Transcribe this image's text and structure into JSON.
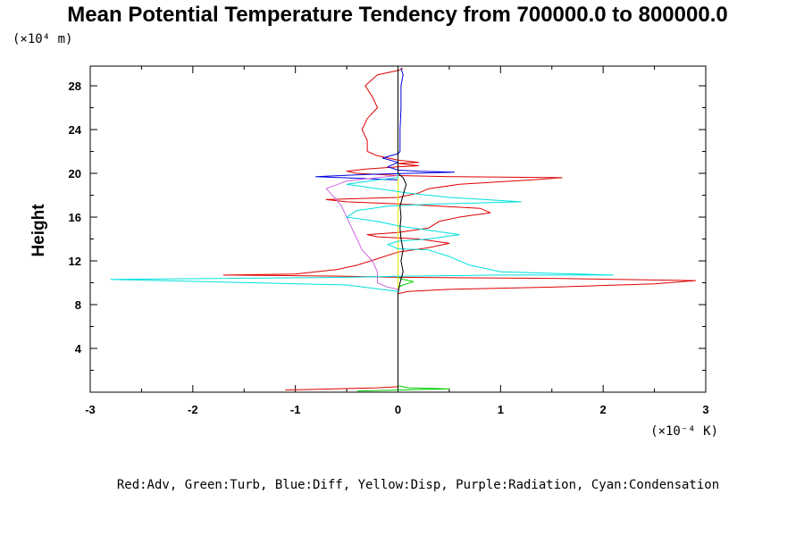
{
  "chart_data": {
    "type": "line",
    "title": "Mean Potential Temperature Tendency from 700000.0 to 800000.0",
    "ylabel": "Height",
    "y_unit": "(×10⁴ m)",
    "x_unit": "(×10⁻⁴ K)",
    "legend_text": "Red:Adv, Green:Turb, Blue:Diff, Yellow:Disp, Purple:Radiation, Cyan:Condensation",
    "xlim": [
      -3,
      3
    ],
    "ylim": [
      0,
      29.8
    ],
    "x_ticks": [
      -3,
      -2,
      -1,
      0,
      1,
      2,
      3
    ],
    "x_tick_labels": [
      "-3",
      "-2",
      "-1",
      "0",
      "1",
      "2",
      "3"
    ],
    "y_ticks": [
      4,
      8,
      12,
      16,
      20,
      24,
      28
    ],
    "y_tick_labels": [
      "4",
      "8",
      "12",
      "16",
      "20",
      "24",
      "28"
    ],
    "grid": false,
    "series": [
      {
        "name": "Adv",
        "color": "#e00000",
        "points": [
          [
            -1.1,
            0.2
          ],
          [
            -0.6,
            0.3
          ],
          [
            -0.2,
            0.4
          ],
          [
            0,
            0.5
          ],
          [
            0,
            0.6
          ],
          [
            0,
            1
          ],
          [
            0,
            2
          ],
          [
            0,
            4
          ],
          [
            0,
            6
          ],
          [
            0,
            8
          ],
          [
            0,
            9
          ],
          [
            0.1,
            9.2
          ],
          [
            0.5,
            9.4
          ],
          [
            1.5,
            9.6
          ],
          [
            2.5,
            9.9
          ],
          [
            2.9,
            10.2
          ],
          [
            1.5,
            10.4
          ],
          [
            0,
            10.5
          ],
          [
            -0.5,
            10.6
          ],
          [
            -1.7,
            10.7
          ],
          [
            -1,
            10.8
          ],
          [
            -0.6,
            11.2
          ],
          [
            -0.4,
            11.6
          ],
          [
            -0.2,
            12.2
          ],
          [
            0,
            12.8
          ],
          [
            0.3,
            13.2
          ],
          [
            0.5,
            13.6
          ],
          [
            0.2,
            14
          ],
          [
            -0.2,
            14.2
          ],
          [
            -0.3,
            14.4
          ],
          [
            0,
            14.6
          ],
          [
            0.3,
            15
          ],
          [
            0.4,
            15.6
          ],
          [
            0.6,
            16
          ],
          [
            0.9,
            16.4
          ],
          [
            0.8,
            16.8
          ],
          [
            0.4,
            17
          ],
          [
            0,
            17.2
          ],
          [
            -0.5,
            17.4
          ],
          [
            -0.7,
            17.6
          ],
          [
            0,
            17.8
          ],
          [
            0.2,
            18.2
          ],
          [
            0.3,
            18.6
          ],
          [
            0.6,
            19
          ],
          [
            1.3,
            19.4
          ],
          [
            1.6,
            19.6
          ],
          [
            0.5,
            19.7
          ],
          [
            0,
            19.8
          ],
          [
            -0.4,
            20
          ],
          [
            -0.5,
            20.2
          ],
          [
            -0.3,
            20.4
          ],
          [
            0,
            20.6
          ],
          [
            0.2,
            20.7
          ],
          [
            0,
            20.9
          ],
          [
            0.2,
            21
          ],
          [
            0,
            21.2
          ],
          [
            -0.2,
            21.6
          ],
          [
            -0.3,
            22
          ],
          [
            -0.3,
            23
          ],
          [
            -0.35,
            24
          ],
          [
            -0.3,
            25
          ],
          [
            -0.2,
            26
          ],
          [
            -0.25,
            27
          ],
          [
            -0.32,
            28
          ],
          [
            -0.2,
            29
          ],
          [
            0,
            29.4
          ],
          [
            0.05,
            29.6
          ]
        ]
      },
      {
        "name": "Turb",
        "color": "#00d000",
        "points": [
          [
            -0.4,
            0.1
          ],
          [
            0,
            0.2
          ],
          [
            0.5,
            0.3
          ],
          [
            0.1,
            0.4
          ],
          [
            0,
            0.6
          ],
          [
            0,
            1
          ],
          [
            0,
            2
          ],
          [
            0,
            4
          ],
          [
            0,
            6
          ],
          [
            0,
            8
          ],
          [
            0,
            9.6
          ],
          [
            0.05,
            9.8
          ],
          [
            0.15,
            10.1
          ],
          [
            0.05,
            10.3
          ],
          [
            0,
            10.5
          ],
          [
            0,
            11
          ],
          [
            0,
            14
          ],
          [
            0,
            18
          ],
          [
            0,
            22
          ],
          [
            0,
            26
          ],
          [
            0,
            29.6
          ]
        ]
      },
      {
        "name": "Diff",
        "color": "#0000e0",
        "points": [
          [
            0,
            0.3
          ],
          [
            0,
            5
          ],
          [
            0,
            10
          ],
          [
            0,
            14
          ],
          [
            0,
            18
          ],
          [
            0,
            19.4
          ],
          [
            -0.8,
            19.7
          ],
          [
            -0.3,
            19.9
          ],
          [
            0.55,
            20.1
          ],
          [
            0.2,
            20.2
          ],
          [
            0,
            20.3
          ],
          [
            -0.1,
            20.6
          ],
          [
            0,
            21
          ],
          [
            -0.15,
            21.4
          ],
          [
            0,
            21.8
          ],
          [
            0.02,
            22
          ],
          [
            0.02,
            24
          ],
          [
            0.03,
            26
          ],
          [
            0.03,
            28
          ],
          [
            0.05,
            29
          ],
          [
            0.03,
            29.6
          ]
        ]
      },
      {
        "name": "Disp",
        "color": "#e8e800",
        "points": [
          [
            0,
            0.3
          ],
          [
            0,
            5
          ],
          [
            0,
            10
          ],
          [
            0,
            12
          ],
          [
            0,
            14
          ],
          [
            0,
            16
          ],
          [
            0,
            18
          ],
          [
            0,
            20
          ],
          [
            0,
            24
          ],
          [
            0,
            28
          ],
          [
            0,
            29.6
          ]
        ]
      },
      {
        "name": "Radiation",
        "color": "#cc66dd",
        "points": [
          [
            0,
            0.3
          ],
          [
            0,
            5
          ],
          [
            0,
            9.4
          ],
          [
            -0.1,
            9.6
          ],
          [
            -0.2,
            10
          ],
          [
            -0.2,
            11
          ],
          [
            -0.25,
            12
          ],
          [
            -0.35,
            13
          ],
          [
            -0.4,
            14
          ],
          [
            -0.45,
            15
          ],
          [
            -0.5,
            16
          ],
          [
            -0.55,
            17
          ],
          [
            -0.6,
            17.6
          ],
          [
            -0.7,
            18.6
          ],
          [
            -0.5,
            19.3
          ],
          [
            -0.2,
            19.6
          ],
          [
            0,
            19.8
          ],
          [
            0,
            24
          ],
          [
            0,
            29.6
          ]
        ]
      },
      {
        "name": "Condensation",
        "color": "#00e0e0",
        "points": [
          [
            0,
            0.3
          ],
          [
            0,
            5
          ],
          [
            0,
            9.2
          ],
          [
            -0.5,
            9.8
          ],
          [
            -2.8,
            10.3
          ],
          [
            -0.5,
            10.5
          ],
          [
            0,
            10.6
          ],
          [
            1,
            10.7
          ],
          [
            2.1,
            10.7
          ],
          [
            1,
            11
          ],
          [
            0.7,
            11.6
          ],
          [
            0.5,
            12.4
          ],
          [
            0.3,
            13
          ],
          [
            0,
            13.1
          ],
          [
            -0.1,
            13.5
          ],
          [
            0,
            13.8
          ],
          [
            0.3,
            14
          ],
          [
            0.6,
            14.4
          ],
          [
            0.3,
            14.8
          ],
          [
            0,
            15.2
          ],
          [
            -0.2,
            15.6
          ],
          [
            -0.5,
            16
          ],
          [
            -0.4,
            16.6
          ],
          [
            -0.1,
            17
          ],
          [
            0.4,
            17.2
          ],
          [
            1.2,
            17.4
          ],
          [
            0.5,
            17.8
          ],
          [
            0.1,
            18.2
          ],
          [
            -0.5,
            19
          ],
          [
            -0.2,
            19.4
          ],
          [
            0,
            19.6
          ],
          [
            0,
            22
          ],
          [
            0,
            26
          ],
          [
            0,
            29.6
          ]
        ]
      },
      {
        "name": "",
        "color": "#000000",
        "points": [
          [
            0,
            0.2
          ],
          [
            0,
            4
          ],
          [
            0,
            9
          ],
          [
            0.02,
            10
          ],
          [
            0.05,
            11
          ],
          [
            0.03,
            12
          ],
          [
            0.05,
            13
          ],
          [
            0.03,
            14
          ],
          [
            0.02,
            15
          ],
          [
            0.03,
            16
          ],
          [
            0.02,
            17
          ],
          [
            0.05,
            18
          ],
          [
            0.08,
            19
          ],
          [
            0.05,
            19.6
          ],
          [
            0,
            20
          ],
          [
            0,
            24
          ],
          [
            0,
            29.6
          ]
        ]
      }
    ]
  }
}
